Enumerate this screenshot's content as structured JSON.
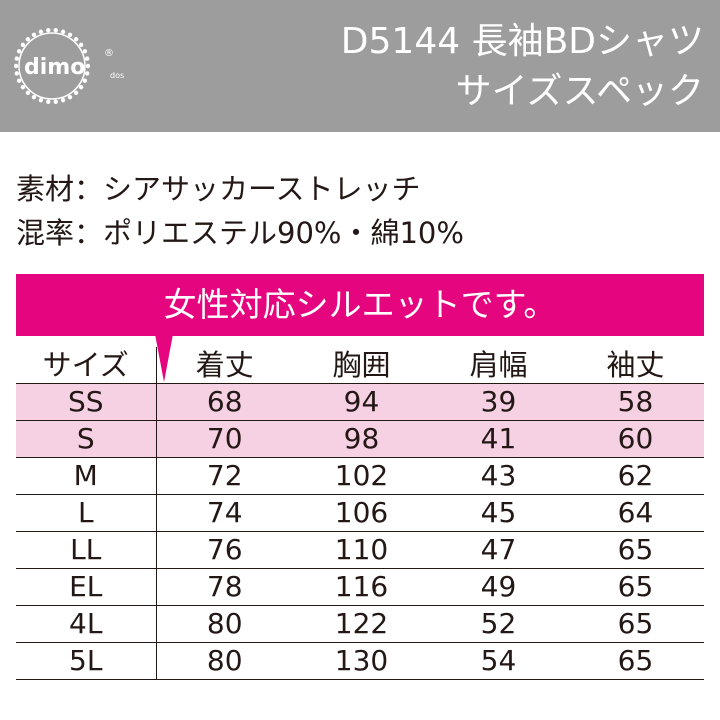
{
  "header": {
    "logo_text": "dimo",
    "logo_sub": "dos",
    "logo_mark": "®",
    "title_line1": "D5144 長袖BDシャツ",
    "title_line2": "サイズスペック"
  },
  "specs": {
    "material": "素材：シアサッカーストレッチ",
    "blend": "混率：ポリエステル90%・綿10%"
  },
  "banner": {
    "text": "女性対応シルエットです。"
  },
  "table": {
    "columns": [
      "サイズ",
      "着丈",
      "胸囲",
      "肩幅",
      "袖丈"
    ],
    "rows": [
      {
        "size": "SS",
        "length": "68",
        "chest": "94",
        "shoulder": "39",
        "sleeve": "58",
        "highlight": true
      },
      {
        "size": "S",
        "length": "70",
        "chest": "98",
        "shoulder": "41",
        "sleeve": "60",
        "highlight": true
      },
      {
        "size": "M",
        "length": "72",
        "chest": "102",
        "shoulder": "43",
        "sleeve": "62",
        "highlight": false
      },
      {
        "size": "L",
        "length": "74",
        "chest": "106",
        "shoulder": "45",
        "sleeve": "64",
        "highlight": false
      },
      {
        "size": "LL",
        "length": "76",
        "chest": "110",
        "shoulder": "47",
        "sleeve": "65",
        "highlight": false
      },
      {
        "size": "EL",
        "length": "78",
        "chest": "116",
        "shoulder": "49",
        "sleeve": "65",
        "highlight": false
      },
      {
        "size": "4L",
        "length": "80",
        "chest": "122",
        "shoulder": "52",
        "sleeve": "65",
        "highlight": false
      },
      {
        "size": "5L",
        "length": "80",
        "chest": "130",
        "shoulder": "54",
        "sleeve": "65",
        "highlight": false
      }
    ]
  },
  "colors": {
    "header_bg": "#9d9d9d",
    "accent": "#e5057f",
    "highlight_row": "#f6d0e3",
    "text": "#231815"
  }
}
